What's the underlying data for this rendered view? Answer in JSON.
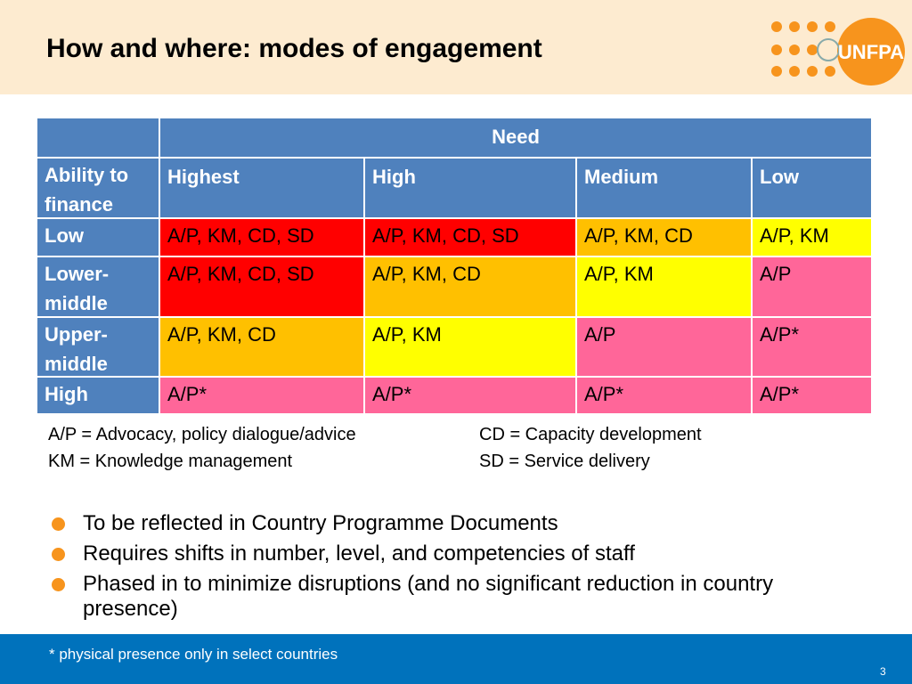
{
  "header": {
    "title": "How and where: modes of engagement",
    "logo": "UNFPA"
  },
  "table": {
    "corner": "",
    "span_header": "Need",
    "row_header": "Ability to finance",
    "columns": [
      "Highest",
      "High",
      "Medium",
      "Low"
    ],
    "rows": [
      {
        "label": "Low",
        "cells": [
          "A/P, KM, CD, SD",
          "A/P, KM, CD, SD",
          "A/P, KM, CD",
          "A/P, KM"
        ],
        "colors": [
          "#ff0000",
          "#ff0000",
          "#ffc000",
          "#ffff00"
        ]
      },
      {
        "label": "Lower-middle",
        "cells": [
          "A/P, KM, CD, SD",
          "A/P, KM, CD",
          "A/P, KM",
          "A/P"
        ],
        "colors": [
          "#ff0000",
          "#ffc000",
          "#ffff00",
          "#ff6699"
        ]
      },
      {
        "label": "Upper-middle",
        "cells": [
          "A/P, KM, CD",
          "A/P, KM",
          "A/P",
          "A/P*"
        ],
        "colors": [
          "#ffc000",
          "#ffff00",
          "#ff6699",
          "#ff6699"
        ]
      },
      {
        "label": "High",
        "cells": [
          "A/P*",
          "A/P*",
          "A/P*",
          "A/P*"
        ],
        "colors": [
          "#ff6699",
          "#ff6699",
          "#ff6699",
          "#ff6699"
        ]
      }
    ]
  },
  "legend": [
    "A/P = Advocacy, policy dialogue/advice",
    "CD = Capacity development",
    "KM = Knowledge management",
    "SD = Service delivery"
  ],
  "bullets": [
    "To be reflected in Country Programme Documents",
    "Requires shifts in number, level, and competencies of staff",
    "Phased in to minimize disruptions (and no significant reduction in country presence)"
  ],
  "footer": {
    "note": "* physical presence only in select countries",
    "page": "3"
  }
}
